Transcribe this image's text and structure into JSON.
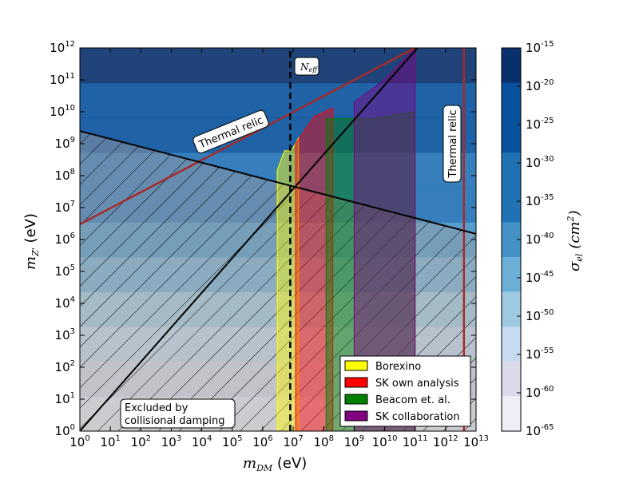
{
  "chart_data": {
    "type": "area",
    "title": "",
    "xlabel": "m_DM (eV)",
    "ylabel": "m_Z' (eV)",
    "x_scale": "log",
    "y_scale": "log",
    "xlim": [
      1,
      10000000000000.0
    ],
    "ylim": [
      1,
      1000000000000.0
    ],
    "x_ticks": [
      "10^0",
      "10^1",
      "10^2",
      "10^3",
      "10^4",
      "10^5",
      "10^6",
      "10^7",
      "10^8",
      "10^9",
      "10^10",
      "10^11",
      "10^12",
      "10^13"
    ],
    "y_ticks": [
      "10^0",
      "10^1",
      "10^2",
      "10^3",
      "10^4",
      "10^5",
      "10^6",
      "10^7",
      "10^8",
      "10^9",
      "10^10",
      "10^11",
      "10^12"
    ],
    "colorbar": {
      "label": "σ_el (cm^2)",
      "ticks": [
        "10^-15",
        "10^-20",
        "10^-25",
        "10^-30",
        "10^-35",
        "10^-40",
        "10^-45",
        "10^-50",
        "10^-55",
        "10^-60",
        "10^-65"
      ],
      "colors": [
        "#08306b",
        "#08519c",
        "#08519c",
        "#2171b5",
        "#2171b5",
        "#4292c6",
        "#6baed6",
        "#9ecae1",
        "#c6dbef",
        "#dadaeb",
        "#efedf5"
      ]
    },
    "background_bands_note": "horizontal color bands encode sigma_el vs m_Z'",
    "regions": [
      {
        "name": "Borexino",
        "color": "#ffff00",
        "x_range": [
          3000000.0,
          15000000.0
        ],
        "y_top": [
          150000000.0,
          600000000.0,
          600000000.0,
          1500000000.0
        ]
      },
      {
        "name": "SK own analysis",
        "color": "#ff0000",
        "x_range": [
          12000000.0,
          200000000.0
        ],
        "y_top": [
          1000000000.0,
          7000000000.0,
          13000000000.0
        ]
      },
      {
        "name": "Beacom et. al.",
        "color": "#008000",
        "x_range": [
          120000000.0,
          100000000000.0
        ],
        "y_top": [
          6000000000.0,
          6000000000.0,
          10000000000.0
        ]
      },
      {
        "name": "SK collaboration",
        "color": "#800080",
        "x_range": [
          1000000000.0,
          100000000000.0
        ],
        "y_top": [
          20000000000.0,
          100000000000.0,
          1000000000000.0
        ]
      }
    ],
    "lines": [
      {
        "name": "Thermal relic",
        "color": "#a52a2a",
        "points": [
          [
            1,
            3000000.0
          ],
          [
            100000000000.0,
            1000000000000.0
          ]
        ]
      },
      {
        "name": "Thermal relic",
        "color": "#a52a2a",
        "points": [
          [
            4000000000000.0,
            1
          ],
          [
            4000000000000.0,
            1000000000000.0
          ]
        ]
      },
      {
        "name": "",
        "color": "#000000",
        "points": [
          [
            1,
            1
          ],
          [
            120000000000.0,
            1000000000000.0
          ]
        ]
      },
      {
        "name": "",
        "color": "#000000",
        "points": [
          [
            1,
            2500000000.0
          ],
          [
            10000000000000.0,
            1500000.0
          ]
        ]
      },
      {
        "name": "N_eff",
        "color": "#000000",
        "style": "dashed",
        "points": [
          [
            8000000.0,
            1
          ],
          [
            8000000.0,
            1000000000000.0
          ]
        ]
      }
    ],
    "annotations": [
      "Thermal relic",
      "Thermal relic",
      "N_eff",
      "Excluded by collisional damping"
    ],
    "legend": {
      "placement": "lower-right",
      "entries": [
        {
          "label": "Borexino",
          "color": "#ffff00"
        },
        {
          "label": "SK own analysis",
          "color": "#ff0000"
        },
        {
          "label": "Beacom et. al.",
          "color": "#008000"
        },
        {
          "label": "SK collaboration",
          "color": "#800080"
        }
      ]
    },
    "grid": false
  },
  "labels": {
    "thermal_relic_1": "Thermal relic",
    "thermal_relic_2": "Thermal relic",
    "neff": "N",
    "neff_sub": "eff",
    "excluded_1": "Excluded by",
    "excluded_2": "collisional damping",
    "xlabel_main": "m",
    "xlabel_sub": "DM",
    "xlabel_unit": " (eV)",
    "ylabel_main": "m",
    "ylabel_sub": "Z'",
    "ylabel_unit": " (eV)",
    "cbar_main": "σ",
    "cbar_sub": "el",
    "cbar_unit": "(cm",
    "cbar_unit_sup": "2",
    "cbar_unit_close": ")"
  }
}
